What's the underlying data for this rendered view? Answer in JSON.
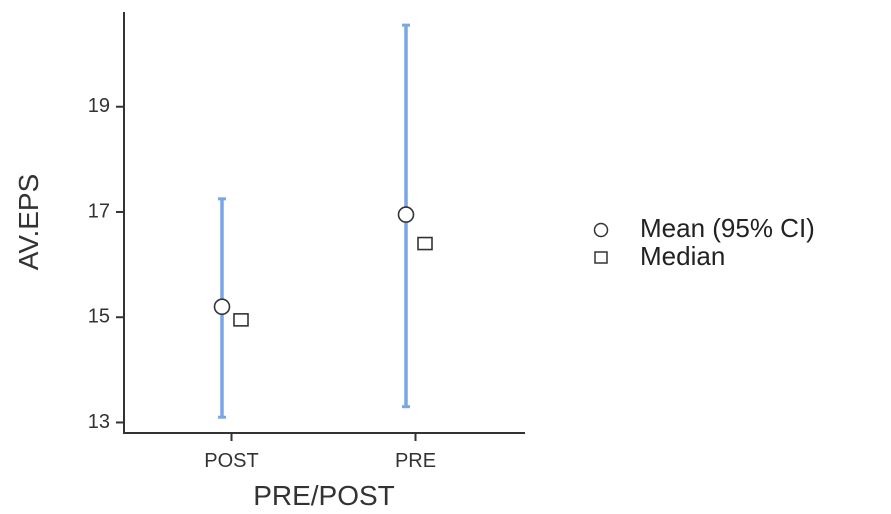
{
  "chart_data": {
    "type": "errorbar",
    "title": "",
    "xlabel": "PRE/POST",
    "ylabel": "AV.EPS",
    "categories": [
      "POST",
      "PRE"
    ],
    "series": [
      {
        "name": "Mean (95% CI)",
        "marker": "circle",
        "values": [
          15.2,
          16.95
        ],
        "ci_lower": [
          13.1,
          13.3
        ],
        "ci_upper": [
          17.25,
          20.55
        ]
      },
      {
        "name": "Median",
        "marker": "square",
        "values": [
          14.95,
          16.4
        ]
      }
    ],
    "yticks": [
      13,
      15,
      17,
      19
    ],
    "ylim": [
      12.8,
      20.8
    ],
    "grid": false,
    "legend_position": "right",
    "colors": {
      "errorbar": "#7aa6e8",
      "axis": "#333333",
      "marker_stroke": "#333333",
      "marker_fill": "#ffffff"
    }
  }
}
